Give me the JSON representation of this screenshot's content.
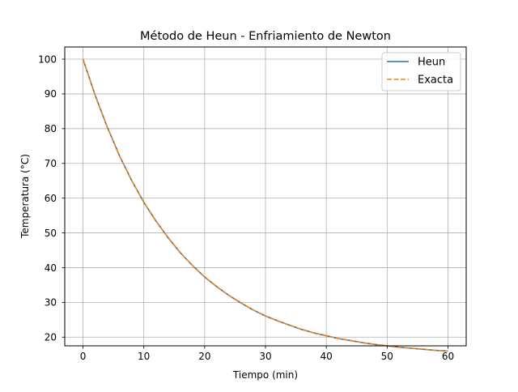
{
  "chart_data": {
    "type": "line",
    "title": "Método de Heun - Enfriamiento de Newton",
    "xlabel": "Tiempo (min)",
    "ylabel": "Temperatura (°C)",
    "xlim": [
      -3,
      63
    ],
    "ylim": [
      17.5,
      103.5
    ],
    "xticks": [
      0,
      10,
      20,
      30,
      40,
      50,
      60
    ],
    "yticks": [
      20,
      30,
      40,
      50,
      60,
      70,
      80,
      90,
      100
    ],
    "grid": true,
    "legend_position": "top-right",
    "series": [
      {
        "name": "Heun",
        "color": "#1f77b4",
        "style": "solid",
        "x": [
          0,
          2,
          4,
          6,
          8,
          10,
          12,
          14,
          16,
          18,
          20,
          22,
          24,
          26,
          28,
          30,
          32,
          34,
          36,
          38,
          40,
          42,
          44,
          46,
          48,
          50,
          52,
          54,
          56,
          58,
          60
        ],
        "y": [
          100.0,
          89.6,
          80.4,
          72.2,
          65.1,
          58.8,
          53.4,
          48.6,
          44.3,
          40.6,
          37.3,
          34.5,
          32.0,
          29.8,
          27.8,
          26.1,
          24.7,
          23.4,
          22.2,
          21.2,
          20.4,
          19.6,
          19.0,
          18.4,
          17.9,
          17.5,
          17.1,
          16.8,
          16.5,
          16.2,
          16.0
        ]
      },
      {
        "name": "Exacta",
        "color": "#ff7f0e",
        "style": "dashed",
        "x": [
          0,
          2,
          4,
          6,
          8,
          10,
          12,
          14,
          16,
          18,
          20,
          22,
          24,
          26,
          28,
          30,
          32,
          34,
          36,
          38,
          40,
          42,
          44,
          46,
          48,
          50,
          52,
          54,
          56,
          58,
          60
        ],
        "y": [
          100.0,
          89.6,
          80.4,
          72.2,
          65.1,
          58.8,
          53.4,
          48.6,
          44.3,
          40.6,
          37.3,
          34.5,
          32.0,
          29.8,
          27.8,
          26.1,
          24.7,
          23.4,
          22.2,
          21.2,
          20.4,
          19.6,
          19.0,
          18.4,
          17.9,
          17.5,
          17.1,
          16.8,
          16.5,
          16.2,
          16.0
        ]
      }
    ]
  }
}
